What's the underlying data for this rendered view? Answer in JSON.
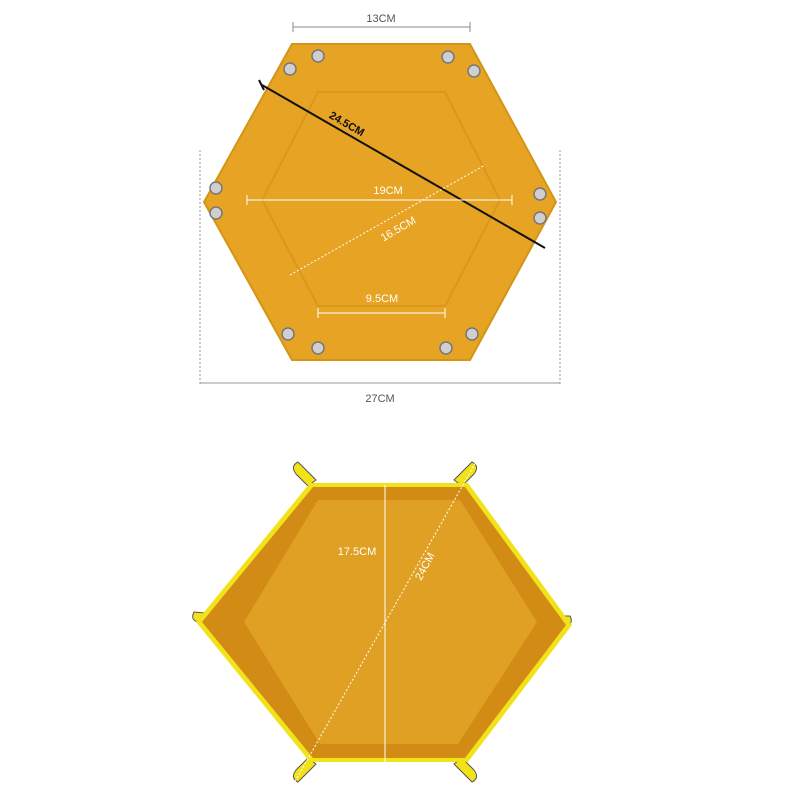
{
  "colors": {
    "felt": "#e3a020",
    "felt_dark": "#c98712",
    "rim": "#f2e21a",
    "guide": "#888888",
    "white": "#ffffff",
    "black": "#111111"
  },
  "top_view": {
    "width_top_label": "13CM",
    "diagonal_label": "24.5CM",
    "mid_width_label": "19CM",
    "inner_diagonal_label": "16.5CM",
    "inner_width_label": "9.5CM",
    "overall_width_label": "27CM"
  },
  "tray_view": {
    "height_label": "17.5CM",
    "diagonal_label": "24CM"
  }
}
